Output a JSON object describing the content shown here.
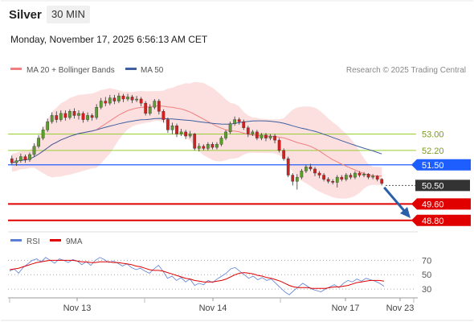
{
  "header": {
    "instrument": "Silver",
    "timeframe": "30 MIN",
    "datetime": "Monday, November 17, 2025 6:56:13 AM CET"
  },
  "legend": {
    "items": [
      {
        "label": "MA 20 + Bollinger Bands",
        "color": "#f08080"
      },
      {
        "label": "MA 50",
        "color": "#3f5f9f"
      }
    ],
    "credit": "Research © 2025 Trading Central"
  },
  "chart_data": [
    {
      "type": "candlestick",
      "title": "",
      "x_tick_labels": [
        "Nov 13",
        "Nov 14",
        "Nov 17",
        "Nov 23"
      ],
      "y_range": [
        48.4,
        55.6
      ],
      "series": [
        {
          "name": "MA 20 + Bollinger Bands",
          "color": "#f08080"
        },
        {
          "name": "MA 50",
          "color": "#3f5f9f"
        }
      ],
      "levels": [
        {
          "value": 53.0,
          "label": "53.00",
          "kind": "resistance",
          "color": "#9acd32"
        },
        {
          "value": 52.2,
          "label": "52.20",
          "kind": "resistance",
          "color": "#9acd32"
        },
        {
          "value": 51.5,
          "label": "51.50",
          "kind": "pivot",
          "color": "#1e5eff"
        },
        {
          "value": 50.5,
          "label": "50.50",
          "kind": "last",
          "color": "#333333"
        },
        {
          "value": 49.6,
          "label": "49.60",
          "kind": "support",
          "color": "#e00000"
        },
        {
          "value": 48.8,
          "label": "48.80",
          "kind": "support",
          "color": "#e00000"
        }
      ],
      "forecast_arrow": {
        "from_value": 50.4,
        "to_value": 49.0,
        "direction": "down",
        "color": "#2b5fa8"
      },
      "candles": [
        [
          51.8,
          51.6,
          51.95,
          51.5
        ],
        [
          51.6,
          51.7,
          51.85,
          51.45
        ],
        [
          51.7,
          51.9,
          52.05,
          51.6
        ],
        [
          51.9,
          51.75,
          52.0,
          51.6
        ],
        [
          51.75,
          52.0,
          52.1,
          51.65
        ],
        [
          52.0,
          52.4,
          52.55,
          51.9
        ],
        [
          52.4,
          52.8,
          52.95,
          52.3
        ],
        [
          52.8,
          53.2,
          53.35,
          52.7
        ],
        [
          53.2,
          53.6,
          53.75,
          53.1
        ],
        [
          53.6,
          53.9,
          54.05,
          53.5
        ],
        [
          53.9,
          53.7,
          54.1,
          53.55
        ],
        [
          53.7,
          54.0,
          54.15,
          53.6
        ],
        [
          54.0,
          53.8,
          54.15,
          53.65
        ],
        [
          53.8,
          54.1,
          54.2,
          53.7
        ],
        [
          54.1,
          53.9,
          54.25,
          53.75
        ],
        [
          53.9,
          54.0,
          54.15,
          53.7
        ],
        [
          54.0,
          53.7,
          54.1,
          53.55
        ],
        [
          53.7,
          53.9,
          54.05,
          53.6
        ],
        [
          53.9,
          53.8,
          54.0,
          53.65
        ],
        [
          53.8,
          54.3,
          54.45,
          53.7
        ],
        [
          54.3,
          54.6,
          54.75,
          54.2
        ],
        [
          54.6,
          54.5,
          54.8,
          54.35
        ],
        [
          54.5,
          54.75,
          54.9,
          54.4
        ],
        [
          54.75,
          54.6,
          54.9,
          54.45
        ],
        [
          54.6,
          54.85,
          55.0,
          54.5
        ],
        [
          54.85,
          54.7,
          54.95,
          54.55
        ],
        [
          54.7,
          54.8,
          54.95,
          54.6
        ],
        [
          54.8,
          54.65,
          54.9,
          54.5
        ],
        [
          54.65,
          54.7,
          54.85,
          54.55
        ],
        [
          54.7,
          54.5,
          54.8,
          54.35
        ],
        [
          54.5,
          54.0,
          54.6,
          53.9
        ],
        [
          54.0,
          54.3,
          54.45,
          53.9
        ],
        [
          54.3,
          54.6,
          54.7,
          54.2
        ],
        [
          54.6,
          54.1,
          54.7,
          53.95
        ],
        [
          54.1,
          53.7,
          54.2,
          53.55
        ],
        [
          53.7,
          53.2,
          53.8,
          53.05
        ],
        [
          53.2,
          53.4,
          53.55,
          53.0
        ],
        [
          53.4,
          53.0,
          53.5,
          52.85
        ],
        [
          53.0,
          53.1,
          53.25,
          52.9
        ],
        [
          53.1,
          52.9,
          53.2,
          52.75
        ],
        [
          52.9,
          53.0,
          53.15,
          52.8
        ],
        [
          53.0,
          52.3,
          53.05,
          52.2
        ],
        [
          52.3,
          52.4,
          52.55,
          52.15
        ],
        [
          52.4,
          52.3,
          52.5,
          52.2
        ],
        [
          52.3,
          52.5,
          52.6,
          52.2
        ],
        [
          52.5,
          52.35,
          52.6,
          52.25
        ],
        [
          52.35,
          52.5,
          52.6,
          52.25
        ],
        [
          52.5,
          52.8,
          52.9,
          52.4
        ],
        [
          52.8,
          53.1,
          53.2,
          52.7
        ],
        [
          53.1,
          53.5,
          53.6,
          53.0
        ],
        [
          53.5,
          53.7,
          53.85,
          53.4
        ],
        [
          53.7,
          53.6,
          53.8,
          53.45
        ],
        [
          53.6,
          53.3,
          53.7,
          53.2
        ],
        [
          53.3,
          53.0,
          53.4,
          52.85
        ],
        [
          53.0,
          53.1,
          53.2,
          52.9
        ],
        [
          53.1,
          52.8,
          53.2,
          52.7
        ],
        [
          52.8,
          52.95,
          53.05,
          52.7
        ],
        [
          52.95,
          52.8,
          53.05,
          52.65
        ],
        [
          52.8,
          52.9,
          53.0,
          52.7
        ],
        [
          52.9,
          52.7,
          53.0,
          52.55
        ],
        [
          52.7,
          52.2,
          52.8,
          52.1
        ],
        [
          52.2,
          51.8,
          52.3,
          51.7
        ],
        [
          51.8,
          51.0,
          51.9,
          50.9
        ],
        [
          51.0,
          50.7,
          51.1,
          50.5
        ],
        [
          50.7,
          50.9,
          51.05,
          50.3
        ],
        [
          50.9,
          51.2,
          51.3,
          50.8
        ],
        [
          51.2,
          51.4,
          51.5,
          51.1
        ],
        [
          51.4,
          51.3,
          51.55,
          51.2
        ],
        [
          51.3,
          51.1,
          51.4,
          50.95
        ],
        [
          51.1,
          51.0,
          51.2,
          50.85
        ],
        [
          51.0,
          50.8,
          51.1,
          50.7
        ],
        [
          50.8,
          50.7,
          50.9,
          50.6
        ],
        [
          50.7,
          50.65,
          50.8,
          50.55
        ],
        [
          50.65,
          50.9,
          51.0,
          50.4
        ],
        [
          50.9,
          50.8,
          51.0,
          50.7
        ],
        [
          50.8,
          51.0,
          51.1,
          50.7
        ],
        [
          51.0,
          50.9,
          51.1,
          50.8
        ],
        [
          50.9,
          51.1,
          51.2,
          50.8
        ],
        [
          51.1,
          51.0,
          51.2,
          50.9
        ],
        [
          51.0,
          51.05,
          51.15,
          50.9
        ],
        [
          51.05,
          50.9,
          51.1,
          50.8
        ],
        [
          50.9,
          50.95,
          51.05,
          50.8
        ],
        [
          50.95,
          50.8,
          51.0,
          50.7
        ],
        [
          50.8,
          50.6,
          50.85,
          50.5
        ]
      ]
    },
    {
      "type": "line",
      "title": "",
      "y_ticks": [
        70,
        50,
        30
      ],
      "y_range": [
        20,
        85
      ],
      "series": [
        {
          "name": "RSI",
          "color": "#5b7fd6",
          "values": [
            55,
            58,
            52,
            60,
            65,
            70,
            72,
            68,
            74,
            70,
            66,
            72,
            70,
            67,
            71,
            69,
            64,
            68,
            63,
            70,
            74,
            71,
            67,
            69,
            66,
            62,
            65,
            60,
            57,
            59,
            55,
            52,
            58,
            63,
            55,
            45,
            48,
            42,
            46,
            40,
            44,
            35,
            38,
            36,
            42,
            39,
            44,
            48,
            52,
            58,
            60,
            55,
            50,
            45,
            48,
            43,
            46,
            42,
            44,
            38,
            32,
            26,
            22,
            28,
            33,
            38,
            34,
            30,
            28,
            26,
            30,
            33,
            36,
            32,
            38,
            42,
            40,
            44,
            41,
            45,
            43,
            41,
            38,
            34
          ]
        },
        {
          "name": "9MA",
          "color": "#e00000",
          "values": [
            57,
            58,
            59,
            61,
            63,
            65,
            67,
            68,
            69,
            70,
            70,
            70,
            70,
            70,
            70,
            69,
            68,
            68,
            67,
            67,
            68,
            68,
            68,
            67,
            67,
            66,
            65,
            64,
            62,
            61,
            59,
            57,
            56,
            56,
            55,
            53,
            51,
            49,
            47,
            45,
            44,
            42,
            41,
            40,
            40,
            40,
            41,
            42,
            44,
            47,
            50,
            52,
            53,
            52,
            51,
            49,
            48,
            46,
            45,
            43,
            41,
            38,
            35,
            33,
            32,
            32,
            32,
            31,
            31,
            31,
            31,
            32,
            33,
            33,
            34,
            35,
            37,
            39,
            40,
            41,
            42,
            42,
            42,
            41
          ]
        }
      ]
    }
  ]
}
